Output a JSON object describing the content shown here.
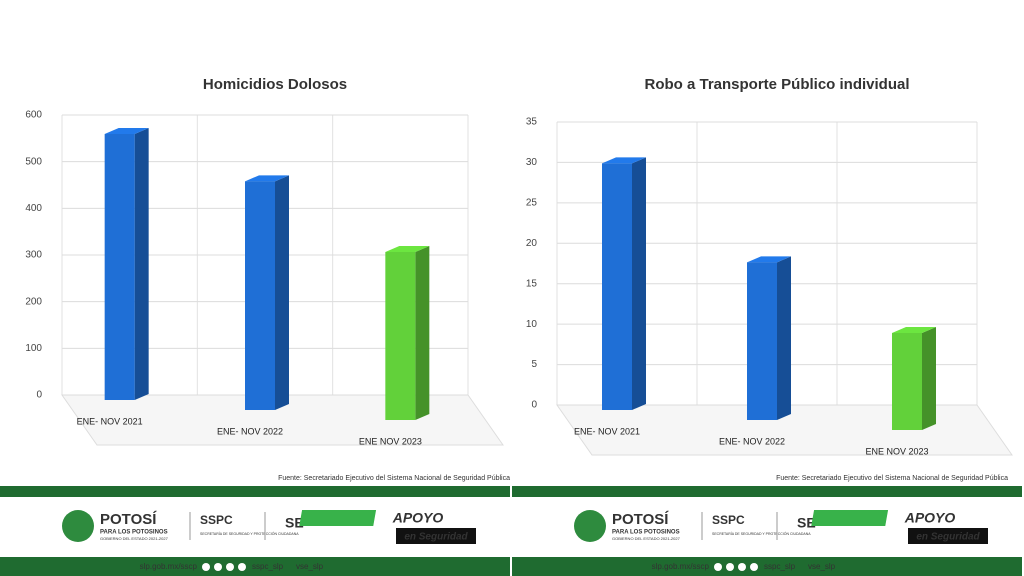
{
  "chart_data": [
    {
      "type": "bar3d",
      "title": "Homicidios Dolosos",
      "categories": [
        "ENE- NOV 2021",
        "ENE- NOV 2022",
        "ENE NOV 2023"
      ],
      "values": [
        570,
        490,
        360
      ],
      "colors": [
        "#1f6fd6",
        "#1f6fd6",
        "#62d13a"
      ],
      "ylim": [
        0,
        600
      ],
      "yticks": [
        0,
        100,
        200,
        300,
        400,
        500,
        600
      ],
      "grid": true
    },
    {
      "type": "bar3d",
      "title": "Robo a Transporte Público individual",
      "categories": [
        "ENE- NOV 2021",
        "ENE- NOV 2022",
        "ENE NOV 2023"
      ],
      "values": [
        30.5,
        19.5,
        12
      ],
      "colors": [
        "#1f6fd6",
        "#1f6fd6",
        "#62d13a"
      ],
      "ylim": [
        0,
        35
      ],
      "yticks": [
        0,
        5,
        10,
        15,
        20,
        25,
        30,
        35
      ],
      "grid": true,
      "source": "Fuente: Secretariado Ejecutivo del Sistema Nacional de Seguridad Pública"
    }
  ],
  "source": "Fuente: Secretariado Ejecutivo del Sistema Nacional de Seguridad Pública",
  "footer": {
    "brand": "POTOSÍ",
    "brand_sub": "PARA LOS POTOSINOS",
    "brand_gov": "GOBIERNO DEL ESTADO 2021-2027",
    "sspc": "SSPC",
    "sspc_sub": "SECRETARÍA DE SEGURIDAD Y PROTECCIÓN CIUDADANA",
    "se": "SE",
    "apoyo": "APOYO",
    "apoyo_sub": "en Seguridad",
    "web": "slp.gob.mx/sscp",
    "handle1": "sspc_slp",
    "handle2": "vse_slp"
  }
}
